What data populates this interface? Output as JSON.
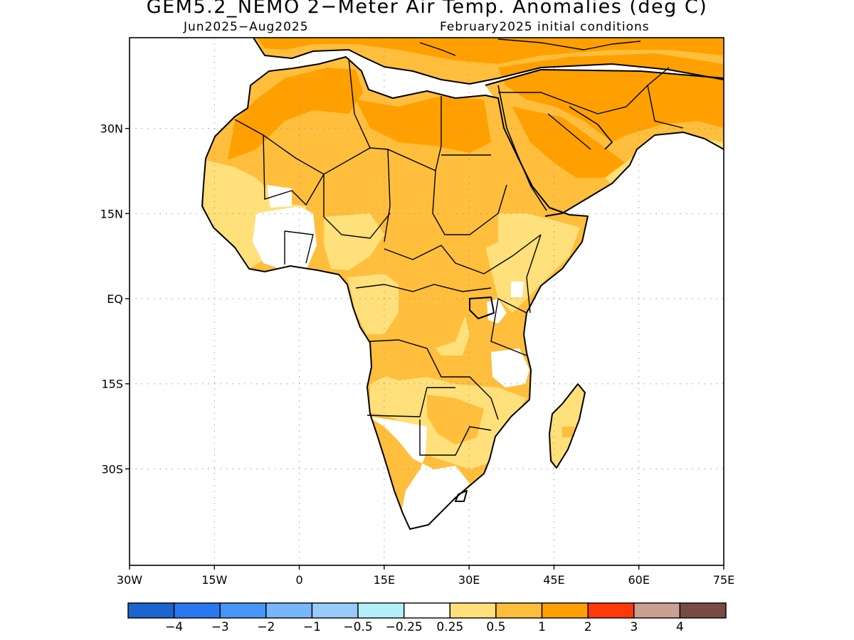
{
  "title": "GEM5.2_NEMO 2−Meter Air Temp. Anomalies (deg C)",
  "subtitle_left": "Jun2025−Aug2025",
  "subtitle_right": "February2025 initial conditions",
  "map": {
    "region": "Africa",
    "lon_range": [
      -30,
      75
    ],
    "lat_range": [
      -47,
      46
    ],
    "grid": true,
    "y_ticks": [
      {
        "label": "30N",
        "lat": 30
      },
      {
        "label": "15N",
        "lat": 15
      },
      {
        "label": "EQ",
        "lat": 0
      },
      {
        "label": "15S",
        "lat": -15
      },
      {
        "label": "30S",
        "lat": -30
      }
    ],
    "x_ticks": [
      {
        "label": "30W",
        "lon": -30
      },
      {
        "label": "15W",
        "lon": -15
      },
      {
        "label": "0",
        "lon": 0
      },
      {
        "label": "15E",
        "lon": 15
      },
      {
        "label": "30E",
        "lon": 30
      },
      {
        "label": "45E",
        "lon": 45
      },
      {
        "label": "60E",
        "lon": 60
      },
      {
        "label": "75E",
        "lon": 75
      }
    ]
  },
  "colorbar": {
    "colors": [
      "#1c64d0",
      "#2a78f0",
      "#4696f7",
      "#78b6fa",
      "#97cbfa",
      "#b4f0fa",
      "#ffffff",
      "#ffe07a",
      "#ffbe3c",
      "#ffa000",
      "#ff3a0a",
      "#caa090",
      "#784c42"
    ],
    "labels": [
      "−4",
      "−3",
      "−2",
      "−1",
      "−0.5",
      "−0.25",
      "0.25",
      "0.5",
      "1",
      "2",
      "3",
      "4"
    ]
  }
}
